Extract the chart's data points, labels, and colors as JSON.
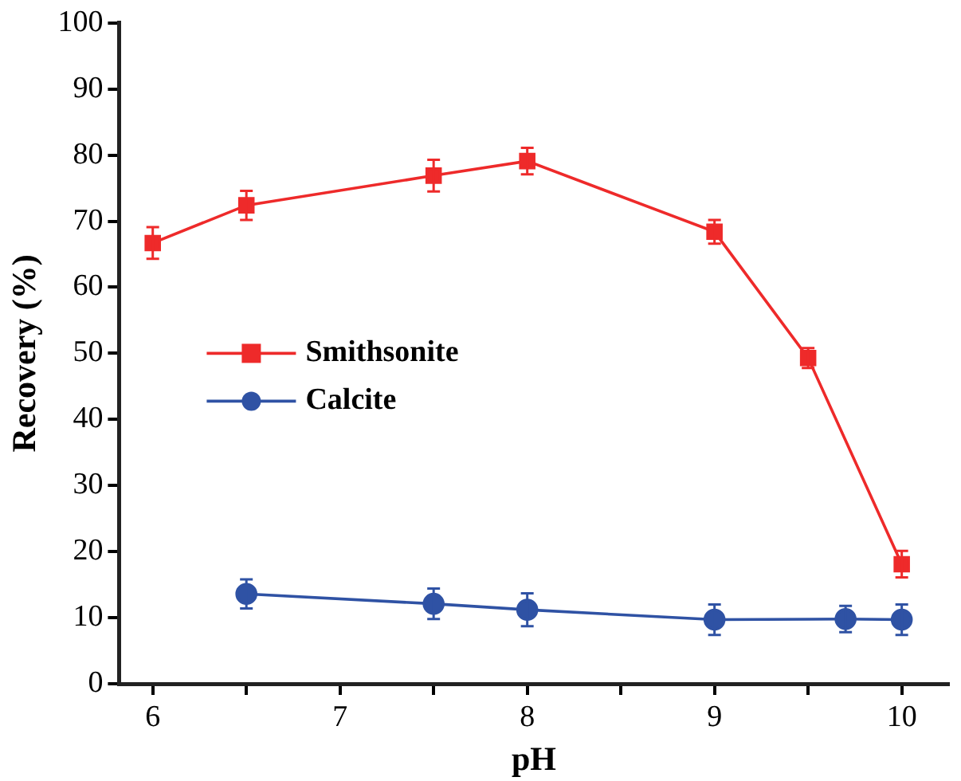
{
  "chart_data": {
    "type": "line",
    "xlabel": "pH",
    "ylabel": "Recovery (%)",
    "xlim": [
      5.82,
      10.25
    ],
    "xticks": [
      6,
      {
        "value": 6.5,
        "label": null
      },
      7,
      {
        "value": 7.5,
        "label": null
      },
      8,
      {
        "value": 8.5,
        "label": null
      },
      9,
      {
        "value": 9.5,
        "label": null
      },
      10
    ],
    "ylim": [
      0,
      100
    ],
    "yticks": [
      0,
      10,
      20,
      30,
      40,
      50,
      60,
      70,
      80,
      90,
      100
    ],
    "grid": false,
    "legend": "left",
    "series": [
      {
        "name": "Smithsonite",
        "color": "#ee2a2a",
        "marker": "square",
        "x": [
          6,
          6.5,
          7.5,
          8,
          9,
          9.5,
          10
        ],
        "values": [
          66.7,
          72.4,
          76.9,
          79.1,
          68.4,
          49.3,
          18.1
        ],
        "errors": [
          2.4,
          2.2,
          2.4,
          2.0,
          1.8,
          1.5,
          2.0
        ]
      },
      {
        "name": "Calcite",
        "color": "#2f52a4",
        "marker": "circle",
        "x": [
          6.5,
          7.5,
          8,
          9,
          9.7,
          10
        ],
        "values": [
          13.6,
          12.1,
          11.2,
          9.7,
          9.8,
          9.7
        ],
        "errors": [
          2.2,
          2.3,
          2.5,
          2.3,
          2.0,
          2.3
        ]
      }
    ]
  }
}
